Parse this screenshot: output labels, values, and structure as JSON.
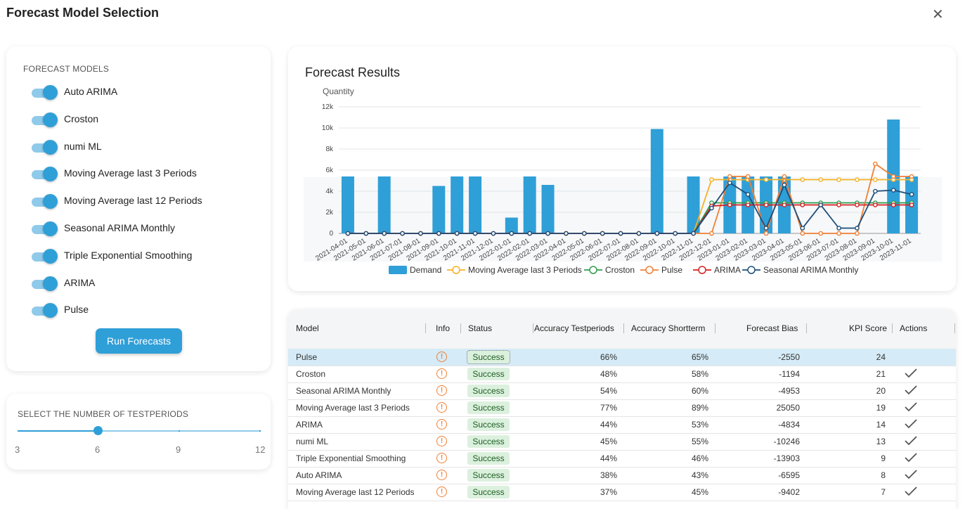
{
  "dialog": {
    "title": "Forecast Model Selection",
    "close_glyph": "✕"
  },
  "models_panel": {
    "label": "FORECAST MODELS",
    "models": [
      {
        "label": "Auto ARIMA",
        "enabled": true
      },
      {
        "label": "Croston",
        "enabled": true
      },
      {
        "label": "numi ML",
        "enabled": true
      },
      {
        "label": "Moving Average last 3 Periods",
        "enabled": true
      },
      {
        "label": "Moving Average last 12 Periods",
        "enabled": true
      },
      {
        "label": "Seasonal ARIMA Monthly",
        "enabled": true
      },
      {
        "label": "Triple Exponential Smoothing",
        "enabled": true
      },
      {
        "label": "ARIMA",
        "enabled": true
      },
      {
        "label": "Pulse",
        "enabled": true
      }
    ],
    "run_button": "Run Forecasts"
  },
  "testperiods": {
    "label": "SELECT THE NUMBER OF TESTPERIODS",
    "marks": [
      "3",
      "6",
      "9",
      "12"
    ],
    "min": 3,
    "max": 12,
    "value": 6
  },
  "chart_title": "Forecast Results",
  "chart_data": {
    "type": "bar",
    "ylabel": "Quantity",
    "ylim": [
      0,
      12000
    ],
    "yticks": [
      "0",
      "2k",
      "4k",
      "6k",
      "8k",
      "10k",
      "12k"
    ],
    "categories": [
      "2021-04-01",
      "2021-05-01",
      "2021-06-01",
      "2021-07-01",
      "2021-08-01",
      "2021-09-01",
      "2021-10-01",
      "2021-11-01",
      "2021-12-01",
      "2022-01-01",
      "2022-02-01",
      "2022-03-01",
      "2022-04-01",
      "2022-05-01",
      "2022-06-01",
      "2022-07-01",
      "2022-08-01",
      "2022-09-01",
      "2022-10-01",
      "2022-11-01",
      "2022-12-01",
      "2023-01-01",
      "2023-02-01",
      "2023-03-01",
      "2023-04-01",
      "2023-05-01",
      "2023-06-01",
      "2023-07-01",
      "2023-08-01",
      "2023-09-01",
      "2023-10-01",
      "2023-11-01"
    ],
    "series": [
      {
        "name": "Demand",
        "kind": "bar",
        "color": "#2f9fd8",
        "values": [
          5400,
          0,
          5400,
          0,
          0,
          4500,
          5400,
          5400,
          0,
          1500,
          5400,
          4600,
          0,
          0,
          0,
          0,
          0,
          9900,
          0,
          5400,
          0,
          5400,
          5400,
          5400,
          5400,
          0,
          0,
          0,
          0,
          0,
          10800,
          5400
        ]
      },
      {
        "name": "Moving Average last 3 Periods",
        "kind": "line",
        "color": "#f4b223",
        "values": [
          0,
          0,
          0,
          0,
          0,
          0,
          0,
          0,
          0,
          0,
          0,
          0,
          0,
          0,
          0,
          0,
          0,
          0,
          0,
          0,
          5100,
          5100,
          5100,
          5100,
          5100,
          5100,
          5100,
          5100,
          5100,
          5100,
          5100,
          5100
        ]
      },
      {
        "name": "Croston",
        "kind": "line",
        "color": "#2e9d4f",
        "values": [
          0,
          0,
          0,
          0,
          0,
          0,
          0,
          0,
          0,
          0,
          0,
          0,
          0,
          0,
          0,
          0,
          0,
          0,
          0,
          0,
          2900,
          2900,
          2900,
          2900,
          2900,
          2900,
          2900,
          2900,
          2900,
          2900,
          2900,
          2900
        ]
      },
      {
        "name": "Pulse",
        "kind": "line",
        "color": "#f07f34",
        "values": [
          0,
          0,
          0,
          0,
          0,
          0,
          0,
          0,
          0,
          0,
          0,
          0,
          0,
          0,
          0,
          0,
          0,
          0,
          0,
          0,
          0,
          5400,
          5400,
          0,
          5400,
          0,
          0,
          0,
          0,
          6600,
          5400,
          5400
        ]
      },
      {
        "name": "ARIMA",
        "kind": "line",
        "color": "#d62020",
        "values": [
          0,
          0,
          0,
          0,
          0,
          0,
          0,
          0,
          0,
          0,
          0,
          0,
          0,
          0,
          0,
          0,
          0,
          0,
          0,
          0,
          2600,
          2700,
          2700,
          2700,
          2700,
          2700,
          2700,
          2700,
          2700,
          2700,
          2700,
          2700
        ]
      },
      {
        "name": "Seasonal ARIMA Monthly",
        "kind": "line",
        "color": "#1f4e79",
        "values": [
          0,
          0,
          0,
          0,
          0,
          0,
          0,
          0,
          0,
          0,
          0,
          0,
          0,
          0,
          0,
          0,
          0,
          0,
          0,
          0,
          2400,
          4800,
          3700,
          500,
          4600,
          500,
          2700,
          500,
          500,
          4000,
          4100,
          3700
        ]
      }
    ]
  },
  "table": {
    "headers": {
      "model": "Model",
      "info": "Info",
      "status": "Status",
      "acc_test": "Accuracy Testperiods",
      "acc_short": "Accuracy Shortterm",
      "bias": "Forecast Bias",
      "kpi": "KPI Score",
      "actions": "Actions"
    },
    "rows": [
      {
        "model": "Pulse",
        "status": "Success",
        "acc_test": "66%",
        "acc_short": "65%",
        "bias": "-2550",
        "kpi": "24",
        "selected": true,
        "check": false
      },
      {
        "model": "Croston",
        "status": "Success",
        "acc_test": "48%",
        "acc_short": "58%",
        "bias": "-1194",
        "kpi": "21",
        "selected": false,
        "check": true
      },
      {
        "model": "Seasonal ARIMA Monthly",
        "status": "Success",
        "acc_test": "54%",
        "acc_short": "60%",
        "bias": "-4953",
        "kpi": "20",
        "selected": false,
        "check": true
      },
      {
        "model": "Moving Average last 3 Periods",
        "status": "Success",
        "acc_test": "77%",
        "acc_short": "89%",
        "bias": "25050",
        "kpi": "19",
        "selected": false,
        "check": true
      },
      {
        "model": "ARIMA",
        "status": "Success",
        "acc_test": "44%",
        "acc_short": "53%",
        "bias": "-4834",
        "kpi": "14",
        "selected": false,
        "check": true
      },
      {
        "model": "numi ML",
        "status": "Success",
        "acc_test": "45%",
        "acc_short": "55%",
        "bias": "-10246",
        "kpi": "13",
        "selected": false,
        "check": true
      },
      {
        "model": "Triple Exponential Smoothing",
        "status": "Success",
        "acc_test": "44%",
        "acc_short": "46%",
        "bias": "-13903",
        "kpi": "9",
        "selected": false,
        "check": true
      },
      {
        "model": "Auto ARIMA",
        "status": "Success",
        "acc_test": "38%",
        "acc_short": "43%",
        "bias": "-6595",
        "kpi": "8",
        "selected": false,
        "check": true
      },
      {
        "model": "Moving Average last 12 Periods",
        "status": "Success",
        "acc_test": "37%",
        "acc_short": "45%",
        "bias": "-9402",
        "kpi": "7",
        "selected": false,
        "check": true
      }
    ],
    "info_glyph": "!"
  }
}
